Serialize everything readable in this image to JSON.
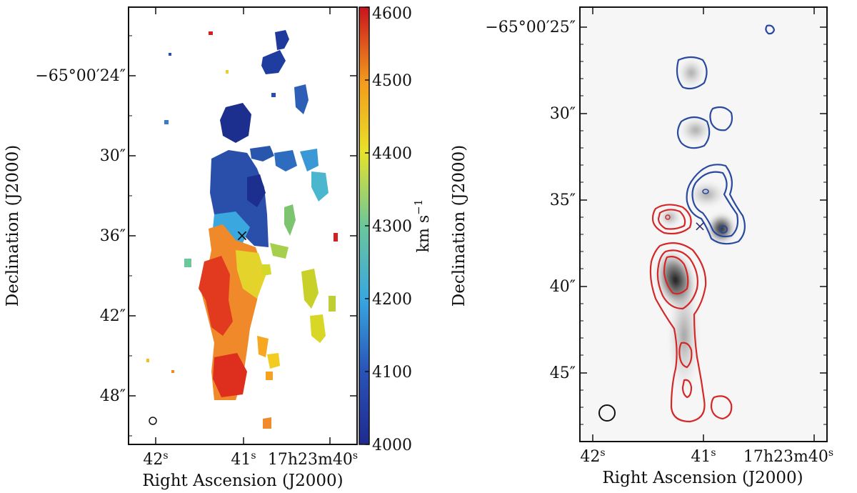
{
  "chart_data": [
    {
      "type": "map",
      "title": "",
      "xlabel": "Right Ascension (J2000)",
      "ylabel": "Declination (J2000)",
      "x_ticks": [
        "42",
        "41",
        "17h23m40"
      ],
      "x_tick_suffix": "s",
      "y_ticks": [
        "−65°00′24″",
        "30″",
        "36″",
        "42″",
        "48″"
      ],
      "colorbar": {
        "label": "km s−1",
        "label_main": "km s",
        "label_exp": "−1",
        "range": [
          4000,
          4600
        ],
        "ticks": [
          4000,
          4100,
          4200,
          4300,
          4400,
          4500,
          4600
        ]
      },
      "markers": [
        {
          "name": "center",
          "symbol": "×"
        }
      ],
      "beam": "ellipse"
    },
    {
      "type": "contour",
      "title": "",
      "xlabel": "Right Ascension (J2000)",
      "ylabel": "Declination (J2000)",
      "x_ticks": [
        "42",
        "41",
        "17h23m40"
      ],
      "x_tick_suffix": "s",
      "y_ticks": [
        "−65°00′25″",
        "30″",
        "35″",
        "40″",
        "45″"
      ],
      "contour_colors": {
        "redshifted": "#d62728",
        "blueshifted": "#2a4aa0"
      },
      "markers": [
        {
          "name": "center",
          "symbol": "×"
        }
      ],
      "beam": "ellipse"
    }
  ],
  "colors": {
    "blue_contour": "#2a4aa0",
    "red_contour": "#d62728",
    "marker": "#111111"
  }
}
